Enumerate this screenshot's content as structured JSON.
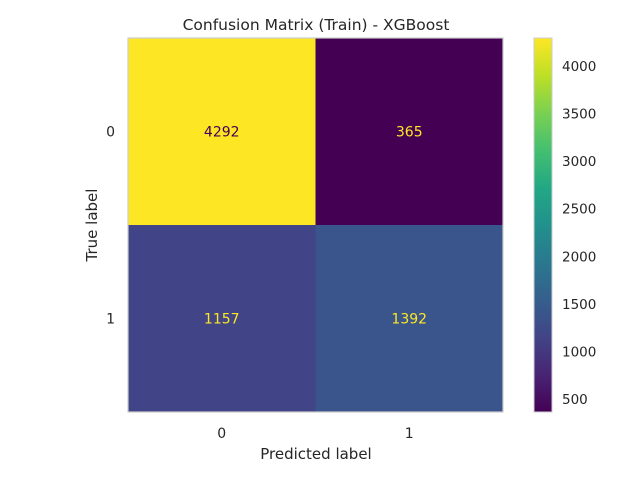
{
  "chart_data": {
    "type": "heatmap",
    "title": "Confusion Matrix (Train) - XGBoost",
    "xlabel": "Predicted label",
    "ylabel": "True label",
    "x_tick_labels": [
      "0",
      "1"
    ],
    "y_tick_labels": [
      "0",
      "1"
    ],
    "matrix": [
      [
        4292,
        365
      ],
      [
        1157,
        1392
      ]
    ],
    "colormap": "viridis",
    "colorbar": {
      "range": [
        365,
        4292
      ],
      "ticks": [
        500,
        1000,
        1500,
        2000,
        2500,
        3000,
        3500,
        4000
      ]
    },
    "grid": false
  }
}
